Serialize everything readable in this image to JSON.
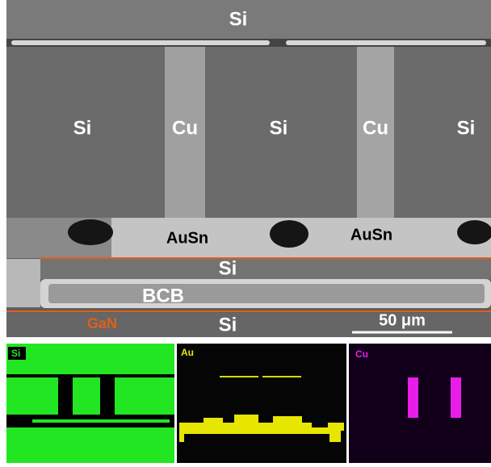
{
  "sem_image": {
    "top_si": "Si",
    "row": [
      "Si",
      "Cu",
      "Si",
      "Cu",
      "Si"
    ],
    "ausn": [
      "AuSn",
      "AuSn"
    ],
    "mid_si": "Si",
    "bcb": "BCB",
    "gan": "GaN",
    "bottom_si": "Si",
    "scale_bar": "50 μm"
  },
  "edx_maps": [
    "Si",
    "Au",
    "Cu"
  ]
}
